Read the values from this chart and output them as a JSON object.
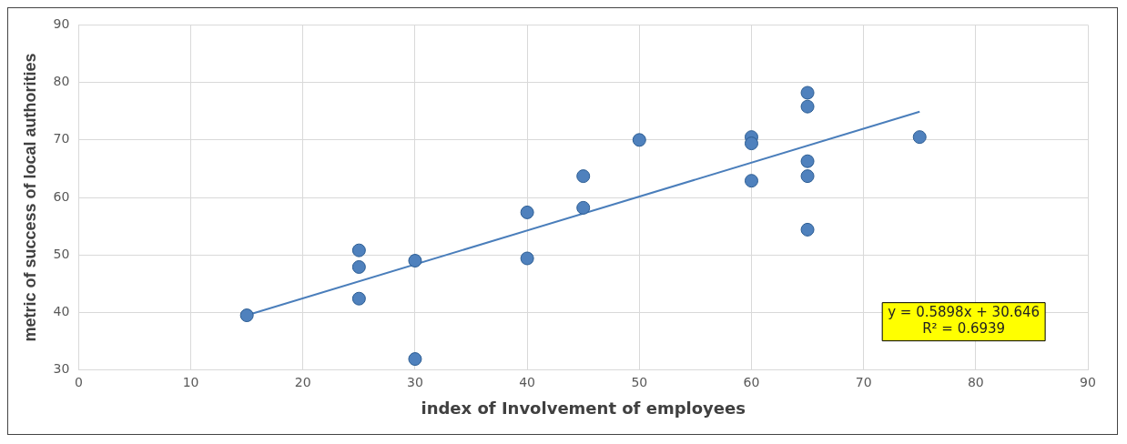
{
  "chart_data": {
    "type": "scatter",
    "xlabel": "index of Involvement of employees",
    "ylabel": "metric of success of local authorities",
    "xlim": [
      0,
      90
    ],
    "xticks": [
      0,
      10,
      20,
      30,
      40,
      50,
      60,
      70,
      80,
      90
    ],
    "ylim": [
      30,
      90
    ],
    "yticks": [
      30,
      40,
      50,
      60,
      70,
      80,
      90
    ],
    "grid": true,
    "legend": false,
    "marker": "circle",
    "annotations": [
      "y = 0.5898x + 30.646",
      "R² = 0.6939"
    ],
    "series": [
      {
        "type": "scatter",
        "color": "#4f81bd",
        "x": [
          15,
          25,
          25,
          25,
          30,
          30,
          40,
          40,
          45,
          45,
          50,
          60,
          60,
          60,
          65,
          65,
          65,
          65,
          65,
          75
        ],
        "values": [
          39.5,
          50.8,
          47.9,
          42.4,
          49,
          31.9,
          57.4,
          49.4,
          63.7,
          58.2,
          70,
          70.5,
          69.4,
          62.9,
          78.2,
          75.8,
          66.3,
          63.7,
          54.4,
          70.5
        ]
      },
      {
        "type": "line",
        "color": "#4a7ebb",
        "marker": "none",
        "x": [
          15,
          75
        ],
        "values": [
          39.5,
          74.9
        ]
      }
    ]
  }
}
